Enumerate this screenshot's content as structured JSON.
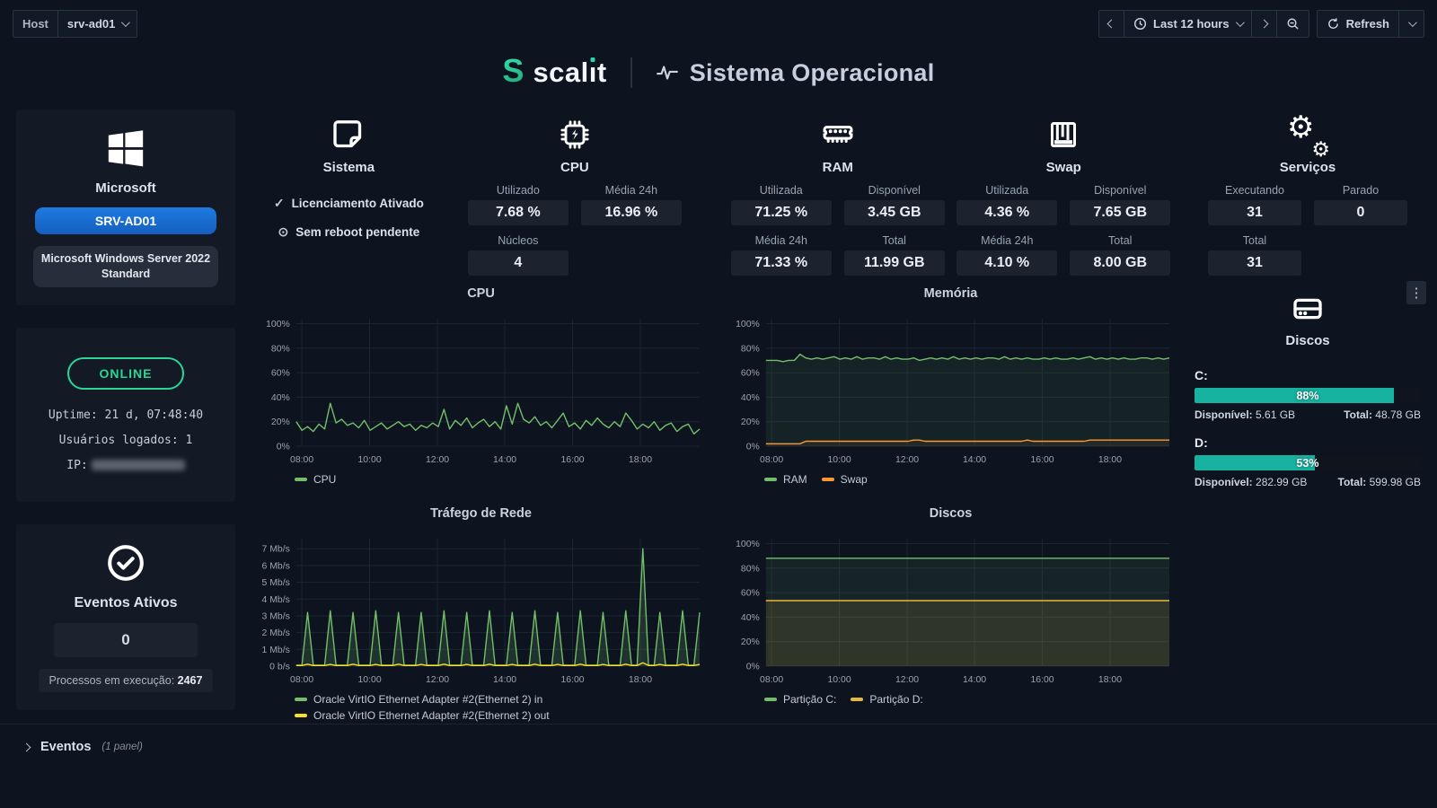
{
  "toolbar": {
    "host_label": "Host",
    "host_value": "srv-ad01",
    "time_range": "Last 12 hours",
    "refresh_label": "Refresh"
  },
  "header": {
    "brand_pre": "scal",
    "brand_i": "ı",
    "brand_post": "t",
    "logo_letter": "S",
    "title": "Sistema Operacional"
  },
  "sidebar": {
    "vendor": "Microsoft",
    "hostname": "SRV-AD01",
    "os": "Microsoft Windows Server 2022 Standard",
    "status": "ONLINE",
    "uptime": "Uptime: 21 d, 07:48:40",
    "logged_users": "Usuários logados: 1",
    "ip_label": "IP:",
    "events_title": "Eventos Ativos",
    "events_value": "0",
    "processes_label": "Processos em execução:",
    "processes_value": "2467"
  },
  "stats": {
    "sistema": {
      "title": "Sistema",
      "items": [
        {
          "icon": "check",
          "glyph": "✓",
          "label": "Licenciamento Ativado"
        },
        {
          "icon": "clock",
          "glyph": "⊙",
          "label": "Sem reboot pendente"
        }
      ]
    },
    "cpu": {
      "title": "CPU",
      "metrics": [
        {
          "label": "Utilizado",
          "value": "7.68 %"
        },
        {
          "label": "Média 24h",
          "value": "16.96 %"
        },
        {
          "label": "Núcleos",
          "value": "4"
        }
      ]
    },
    "ram": {
      "title": "RAM",
      "metrics": [
        {
          "label": "Utilizada",
          "value": "71.25 %"
        },
        {
          "label": "Disponível",
          "value": "3.45 GB"
        },
        {
          "label": "Média 24h",
          "value": "71.33 %"
        },
        {
          "label": "Total",
          "value": "11.99 GB"
        }
      ]
    },
    "swap": {
      "title": "Swap",
      "metrics": [
        {
          "label": "Utilizada",
          "value": "4.36 %"
        },
        {
          "label": "Disponível",
          "value": "7.65 GB"
        },
        {
          "label": "Média 24h",
          "value": "4.10 %"
        },
        {
          "label": "Total",
          "value": "8.00 GB"
        }
      ]
    },
    "servicos": {
      "title": "Serviços",
      "metrics": [
        {
          "label": "Executando",
          "value": "31"
        },
        {
          "label": "Parado",
          "value": "0"
        },
        {
          "label": "Total",
          "value": "31"
        }
      ]
    }
  },
  "chart_data": [
    {
      "type": "line",
      "title": "CPU",
      "ylim": [
        0,
        104
      ],
      "yticks": [
        {
          "v": 0,
          "label": "0%"
        },
        {
          "v": 20,
          "label": "20%"
        },
        {
          "v": 40,
          "label": "40%"
        },
        {
          "v": 60,
          "label": "60%"
        },
        {
          "v": 80,
          "label": "80%"
        },
        {
          "v": 100,
          "label": "100%"
        }
      ],
      "xticks": [
        {
          "f": 0.014,
          "label": "08:00"
        },
        {
          "f": 0.182,
          "label": "10:00"
        },
        {
          "f": 0.35,
          "label": "12:00"
        },
        {
          "f": 0.517,
          "label": "14:00"
        },
        {
          "f": 0.685,
          "label": "16:00"
        },
        {
          "f": 0.853,
          "label": "18:00"
        }
      ],
      "legend": "inline",
      "series": [
        {
          "name": "CPU",
          "color": "#73bf69",
          "fill": 0,
          "values": [
            20,
            13,
            16,
            12,
            18,
            14,
            35,
            19,
            22,
            17,
            19,
            15,
            21,
            13,
            16,
            19,
            14,
            17,
            20,
            16,
            18,
            13,
            17,
            15,
            19,
            16,
            30,
            14,
            21,
            17,
            23,
            15,
            19,
            22,
            16,
            20,
            14,
            33,
            18,
            35,
            22,
            19,
            24,
            17,
            20,
            15,
            21,
            27,
            16,
            19,
            14,
            21,
            17,
            23,
            18,
            15,
            20,
            16,
            27,
            21,
            14,
            18,
            15,
            20,
            13,
            17,
            19,
            12,
            16,
            18,
            10,
            14
          ]
        }
      ]
    },
    {
      "type": "line",
      "title": "Memória",
      "ylim": [
        0,
        104
      ],
      "yticks": [
        {
          "v": 0,
          "label": "0%"
        },
        {
          "v": 20,
          "label": "20%"
        },
        {
          "v": 40,
          "label": "40%"
        },
        {
          "v": 60,
          "label": "60%"
        },
        {
          "v": 80,
          "label": "80%"
        },
        {
          "v": 100,
          "label": "100%"
        }
      ],
      "xticks": [
        {
          "f": 0.014,
          "label": "08:00"
        },
        {
          "f": 0.182,
          "label": "10:00"
        },
        {
          "f": 0.35,
          "label": "12:00"
        },
        {
          "f": 0.517,
          "label": "14:00"
        },
        {
          "f": 0.685,
          "label": "16:00"
        },
        {
          "f": 0.853,
          "label": "18:00"
        }
      ],
      "legend": "inline",
      "series": [
        {
          "name": "RAM",
          "color": "#73bf69",
          "fill": 0.09,
          "values": [
            70,
            70,
            70,
            69,
            70,
            70,
            75,
            72,
            71,
            72,
            71,
            72,
            73,
            71,
            72,
            71,
            73,
            71,
            72,
            72,
            71,
            73,
            71,
            72,
            71,
            71,
            72,
            70,
            71,
            72,
            71,
            72,
            71,
            73,
            71,
            72,
            71,
            72,
            71,
            72,
            72,
            71,
            73,
            71,
            72,
            71,
            72,
            71,
            71,
            72,
            71,
            72,
            71,
            71,
            72,
            71,
            72,
            73,
            71,
            72,
            71,
            72,
            71,
            72,
            71,
            71,
            72,
            72,
            71,
            72,
            71,
            72
          ]
        },
        {
          "name": "Swap",
          "color": "#ff9830",
          "fill": 0.06,
          "values": [
            2,
            2,
            2,
            2,
            2,
            2,
            2,
            4,
            4,
            4,
            4,
            4,
            4,
            4,
            4,
            4,
            4,
            4,
            4,
            4,
            4,
            4,
            4,
            4,
            4,
            4,
            5,
            5,
            4,
            4,
            4,
            4,
            4,
            4,
            4,
            4,
            4,
            4,
            4,
            4,
            4,
            4,
            4,
            4,
            4,
            4,
            5,
            4,
            4,
            4,
            4,
            4,
            4,
            4,
            4,
            4,
            4,
            5,
            5,
            5,
            5,
            5,
            5,
            5,
            5,
            5,
            5,
            5,
            5,
            5,
            5,
            5
          ]
        }
      ]
    },
    {
      "type": "line",
      "title": "Tráfego de Rede",
      "ylim": [
        0,
        7.6
      ],
      "yticks": [
        {
          "v": 0,
          "label": "0 b/s"
        },
        {
          "v": 1,
          "label": "1 Mb/s"
        },
        {
          "v": 2,
          "label": "2 Mb/s"
        },
        {
          "v": 3,
          "label": "3 Mb/s"
        },
        {
          "v": 4,
          "label": "4 Mb/s"
        },
        {
          "v": 5,
          "label": "5 Mb/s"
        },
        {
          "v": 6,
          "label": "6 Mb/s"
        },
        {
          "v": 7,
          "label": "7 Mb/s"
        }
      ],
      "xticks": [
        {
          "f": 0.014,
          "label": "08:00"
        },
        {
          "f": 0.182,
          "label": "10:00"
        },
        {
          "f": 0.35,
          "label": "12:00"
        },
        {
          "f": 0.517,
          "label": "14:00"
        },
        {
          "f": 0.685,
          "label": "16:00"
        },
        {
          "f": 0.853,
          "label": "18:00"
        }
      ],
      "legend": "stack",
      "series": [
        {
          "name": "Oracle VirtIO Ethernet Adapter #2(Ethernet 2) in",
          "color": "#73bf69",
          "fill": 0.18,
          "values": [
            0.06,
            0.06,
            3.2,
            0.06,
            0.06,
            0.06,
            3.3,
            0.06,
            0.06,
            0.06,
            3.2,
            0.06,
            0.06,
            0.06,
            3.3,
            0.06,
            0.06,
            0.06,
            3.2,
            0.06,
            0.06,
            0.06,
            3.2,
            0.06,
            0.06,
            0.06,
            3.3,
            0.06,
            0.06,
            0.06,
            3.2,
            0.06,
            0.06,
            0.06,
            3.3,
            0.06,
            0.06,
            0.06,
            3.2,
            0.06,
            0.06,
            0.06,
            3.3,
            0.06,
            0.06,
            0.06,
            3.2,
            0.06,
            0.06,
            0.06,
            3.3,
            0.06,
            0.06,
            0.06,
            3.2,
            0.06,
            0.06,
            0.06,
            3.3,
            0.06,
            0.06,
            7.0,
            0.06,
            0.06,
            3.2,
            0.06,
            0.06,
            0.06,
            3.3,
            0.06,
            0.06,
            3.2
          ]
        },
        {
          "name": "Oracle VirtIO Ethernet Adapter #2(Ethernet 2) out",
          "color": "#fade2a",
          "fill": 0,
          "values": [
            0.04,
            0.04,
            0.12,
            0.04,
            0.04,
            0.04,
            0.1,
            0.04,
            0.04,
            0.04,
            0.12,
            0.04,
            0.04,
            0.04,
            0.1,
            0.04,
            0.04,
            0.04,
            0.12,
            0.04,
            0.04,
            0.04,
            0.1,
            0.04,
            0.04,
            0.04,
            0.12,
            0.04,
            0.04,
            0.04,
            0.1,
            0.04,
            0.04,
            0.04,
            0.12,
            0.04,
            0.04,
            0.04,
            0.1,
            0.04,
            0.04,
            0.04,
            0.12,
            0.04,
            0.04,
            0.04,
            0.1,
            0.04,
            0.04,
            0.04,
            0.12,
            0.04,
            0.04,
            0.04,
            0.1,
            0.04,
            0.04,
            0.04,
            0.12,
            0.04,
            0.04,
            0.2,
            0.04,
            0.04,
            0.1,
            0.04,
            0.04,
            0.04,
            0.12,
            0.04,
            0.04,
            0.1
          ]
        }
      ]
    },
    {
      "type": "line",
      "title": "Discos",
      "ylim": [
        0,
        104
      ],
      "yticks": [
        {
          "v": 0,
          "label": "0%"
        },
        {
          "v": 20,
          "label": "20%"
        },
        {
          "v": 40,
          "label": "40%"
        },
        {
          "v": 60,
          "label": "60%"
        },
        {
          "v": 80,
          "label": "80%"
        },
        {
          "v": 100,
          "label": "100%"
        }
      ],
      "xticks": [
        {
          "f": 0.014,
          "label": "08:00"
        },
        {
          "f": 0.182,
          "label": "10:00"
        },
        {
          "f": 0.35,
          "label": "12:00"
        },
        {
          "f": 0.517,
          "label": "14:00"
        },
        {
          "f": 0.685,
          "label": "16:00"
        },
        {
          "f": 0.853,
          "label": "18:00"
        }
      ],
      "legend": "inline",
      "series": [
        {
          "name": "Partição C:",
          "color": "#73bf69",
          "fill": 0.1,
          "values": [
            88,
            88
          ]
        },
        {
          "name": "Partição D:",
          "color": "#eab839",
          "fill": 0.12,
          "values": [
            53.5,
            53.5
          ]
        }
      ]
    }
  ],
  "disks_panel": {
    "title": "Discos",
    "items": [
      {
        "name": "C:",
        "percent": 88,
        "percent_label": "88%",
        "available_label": "Disponível:",
        "available": "5.61 GB",
        "total_label": "Total:",
        "total": "48.78 GB"
      },
      {
        "name": "D:",
        "percent": 53,
        "percent_label": "53%",
        "available_label": "Disponível:",
        "available": "282.99 GB",
        "total_label": "Total:",
        "total": "599.98 GB"
      }
    ]
  },
  "events_row": {
    "label": "Eventos",
    "count": "(1 panel)"
  },
  "colors": {
    "accent_teal": "#2fd3ae",
    "online_green": "#2bd695",
    "gauge_teal": "#17b2a0",
    "host_blue": "#1a6fd8",
    "chart_green": "#73bf69",
    "chart_yellow": "#fade2a",
    "chart_orange": "#ff9830"
  }
}
